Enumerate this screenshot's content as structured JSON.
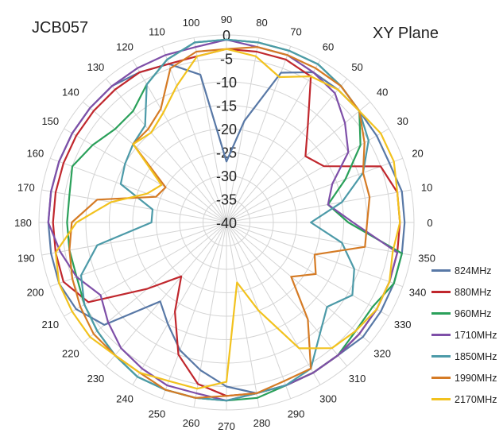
{
  "title_left": "JCB057",
  "title_right": "XY  Plane",
  "chart_data": {
    "type": "radar",
    "angle_unit": "degrees",
    "angles": [
      0,
      10,
      20,
      30,
      40,
      50,
      60,
      70,
      80,
      90,
      100,
      110,
      120,
      130,
      140,
      150,
      160,
      170,
      180,
      190,
      200,
      210,
      220,
      230,
      240,
      250,
      260,
      270,
      280,
      290,
      300,
      310,
      320,
      330,
      340,
      350
    ],
    "r_ticks": [
      0,
      -5,
      -10,
      -15,
      -20,
      -25,
      -30,
      -35,
      -40
    ],
    "r_tick_labels": [
      "0",
      "-5",
      "-10",
      "-15",
      "-20",
      "-25",
      "-30",
      "-35",
      "-40"
    ],
    "r_range": [
      -40,
      0
    ],
    "series": [
      {
        "name": "824MHz",
        "color": "#5878a6",
        "values": [
          -2,
          -2,
          -3,
          -3,
          -3,
          -3,
          -3,
          -6,
          -18,
          -27,
          -8,
          -4,
          -3,
          -2,
          -2,
          -2,
          -2,
          -2,
          -2,
          -2,
          -2,
          -3,
          -6,
          -18,
          -15,
          -11,
          -8,
          -5,
          -3,
          -3,
          -3,
          -3,
          -2,
          -2,
          -2,
          -2
        ]
      },
      {
        "name": "880MHz",
        "color": "#c0272d",
        "values": [
          -3,
          -3,
          -5,
          -16,
          -18,
          -13,
          -4,
          -3,
          -3,
          -3,
          -4,
          -4,
          -3,
          -3,
          -3,
          -3,
          -3,
          -3,
          -3,
          -3,
          -3,
          -6,
          -18,
          -25,
          -18,
          -10,
          -5,
          -3,
          -3,
          -3,
          -3,
          -3,
          -3,
          -3,
          -3,
          -3
        ]
      },
      {
        "name": "960MHz",
        "color": "#2aa05a",
        "values": [
          -14,
          -18,
          -13,
          -7,
          -3,
          -2,
          -1,
          -1,
          -1,
          -1,
          -1,
          -3,
          -6,
          -9,
          -9,
          -7,
          -5,
          -6,
          -6,
          -6,
          -6,
          -5,
          -4,
          -3,
          -2,
          -2,
          -2,
          -2,
          -2,
          -3,
          -3,
          -3,
          -4,
          -4,
          -2,
          -2
        ]
      },
      {
        "name": "1710MHz",
        "color": "#7e4fa8",
        "values": [
          -13,
          -18,
          -16,
          -10,
          -7,
          -4,
          -3,
          -2,
          -2,
          -1,
          -2,
          -2,
          -2,
          -2,
          -2,
          -2,
          -2,
          -2,
          -2,
          -4,
          -6,
          -9,
          -7,
          -5,
          -4,
          -3,
          -3,
          -2,
          -3,
          -3,
          -3,
          -3,
          -3,
          -3,
          -3,
          -3
        ]
      },
      {
        "name": "1850MHz",
        "color": "#4c9aa8",
        "values": [
          -22,
          -15,
          -9,
          -5,
          -3,
          -2,
          -1,
          -1,
          -1,
          -1,
          -1,
          -3,
          -6,
          -13,
          -14,
          -15,
          -16,
          -24,
          -24,
          -12,
          -7,
          -5,
          -4,
          -3,
          -2,
          -2,
          -2,
          -2,
          -3,
          -3,
          -4,
          -9,
          -12,
          -9,
          -11,
          -15
        ]
      },
      {
        "name": "1990MHz",
        "color": "#d57b25",
        "values": [
          -10,
          -9,
          -9,
          -6,
          -3,
          -2,
          -2,
          -2,
          -2,
          -3,
          -3,
          -5,
          -12,
          -14,
          -14,
          -25,
          -24,
          -12,
          -7,
          -6,
          -5,
          -4,
          -3,
          -3,
          -3,
          -2,
          -2,
          -3,
          -3,
          -4,
          -4,
          -13,
          -22,
          -18,
          -20,
          -10
        ]
      },
      {
        "name": "2170MHz",
        "color": "#f2c21e",
        "values": [
          -3,
          -3,
          -2,
          -2,
          -3,
          -3,
          -4,
          -7,
          -4,
          -3,
          -4,
          -9,
          -13,
          -15,
          -14,
          -24,
          -22,
          -15,
          -8,
          -3,
          -2,
          -2,
          -2,
          -3,
          -3,
          -4,
          -4,
          -6,
          -27,
          -20,
          -9,
          -5,
          -4,
          -3,
          -3,
          -4
        ]
      }
    ]
  }
}
